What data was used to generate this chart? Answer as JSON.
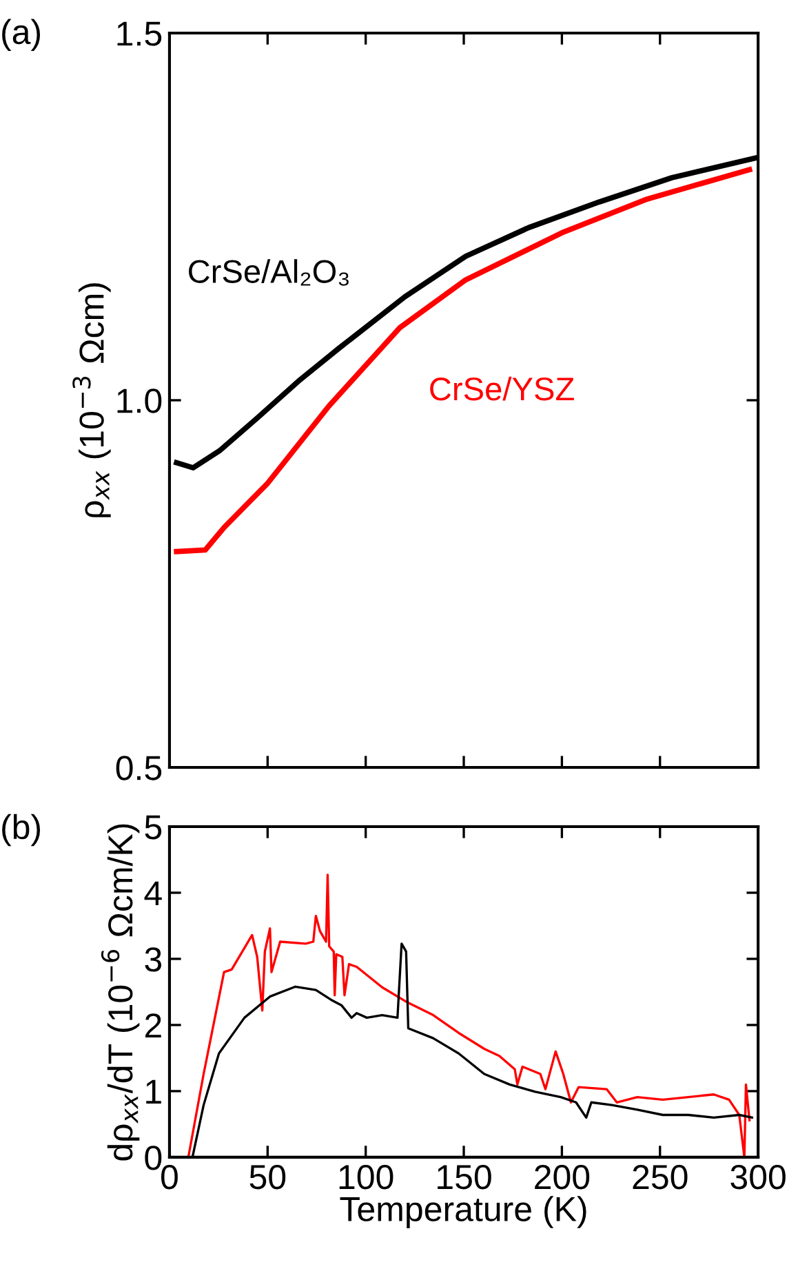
{
  "chart_data": [
    {
      "type": "line",
      "ylabel": "ρ$_{xx}$ (10$^{−3}$ Ωcm)",
      "annotations": [
        "(a)"
      ],
      "xlim": [
        0,
        300
      ],
      "xticks": [
        {
          "value": 0,
          "label": null
        },
        {
          "value": 50,
          "label": null
        },
        {
          "value": 100,
          "label": null
        },
        {
          "value": 150,
          "label": null
        },
        {
          "value": 200,
          "label": null
        },
        {
          "value": 250,
          "label": null
        },
        {
          "value": 300,
          "label": null
        }
      ],
      "ylim": [
        0.5,
        1.5
      ],
      "yticks": [
        0.5,
        {
          "value": 1.0,
          "label": "1.0"
        },
        1.5
      ],
      "tick_labels": "y",
      "grid": false,
      "legend": false,
      "marker": "none",
      "line_style": "solid",
      "series": [
        {
          "name": "CrSe/Al₂O₃",
          "color": "#000000",
          "x": [
            3.6,
            12.1,
            25.4,
            44.8,
            66.6,
            86,
            120,
            151,
            183,
            219,
            256,
            299
          ],
          "values": [
            0.915,
            0.908,
            0.931,
            0.976,
            1.028,
            1.07,
            1.141,
            1.196,
            1.235,
            1.27,
            1.303,
            1.33
          ]
        },
        {
          "name": "CrSe/YSZ",
          "color": "#ff0000",
          "x": [
            3.6,
            18.2,
            27.9,
            49.7,
            81.2,
            117.5,
            151,
            200,
            243.5,
            295.6
          ],
          "values": [
            0.794,
            0.796,
            0.827,
            0.886,
            0.992,
            1.099,
            1.164,
            1.228,
            1.274,
            1.314
          ]
        }
      ]
    },
    {
      "type": "line",
      "xlabel": "Temperature (K)",
      "ylabel": "dρ$_{xx}$/dT (10$^{−6}$ Ωcm/K)",
      "annotations": [
        "(b)"
      ],
      "xlim": [
        0,
        300
      ],
      "xticks": [
        0,
        50,
        100,
        150,
        200,
        250,
        300
      ],
      "ylim": [
        0,
        5
      ],
      "yticks": [
        0,
        1,
        2,
        3,
        4,
        5
      ],
      "grid": false,
      "legend": false,
      "marker": "none",
      "line_style": "solid",
      "series": [
        {
          "color": "#ff0000",
          "x": [
            9.6,
            17.4,
            27.8,
            31.7,
            42.1,
            44.7,
            47.3,
            48.6,
            51.2,
            52,
            56.4,
            69.4,
            73.3,
            74.6,
            76.7,
            79.8,
            80.6,
            81.4,
            83.7,
            84.2,
            85,
            88.1,
            89.2,
            91.5,
            95.4,
            108.4,
            121.4,
            134.4,
            147.4,
            160.4,
            168.2,
            176,
            177.3,
            179.9,
            189,
            191.6,
            196.8,
            200.7,
            204.6,
            208.5,
            222.8,
            228,
            238.4,
            251.4,
            264.4,
            277.4,
            285.2,
            290.4,
            293,
            293.8,
            295.6
          ],
          "values": [
            0,
            1.26,
            2.8,
            2.84,
            3.36,
            3.03,
            2.22,
            3.11,
            3.46,
            2.8,
            3.26,
            3.23,
            3.26,
            3.65,
            3.42,
            3.26,
            4.27,
            3.19,
            3.11,
            2.45,
            3.07,
            3.03,
            2.45,
            2.92,
            2.88,
            2.57,
            2.34,
            2.15,
            1.88,
            1.64,
            1.53,
            1.33,
            1.1,
            1.37,
            1.26,
            1.03,
            1.6,
            1.26,
            0.83,
            1.06,
            1.03,
            0.83,
            0.91,
            0.87,
            0.91,
            0.95,
            0.87,
            0.64,
            0,
            1.1,
            0.56
          ]
        },
        {
          "color": "#000000",
          "x": [
            11.7,
            17.4,
            25.2,
            38.2,
            51.2,
            64.2,
            74.6,
            82.4,
            87.6,
            92.8,
            95.4,
            100.6,
            108.4,
            116.2,
            118.3,
            120.6,
            121.7,
            134.4,
            147.4,
            160.4,
            173.4,
            186.4,
            199.4,
            207.2,
            212.4,
            215,
            225.4,
            238.4,
            251.4,
            264.4,
            277.4,
            290.4,
            296.9
          ],
          "values": [
            0,
            0.79,
            1.57,
            2.11,
            2.43,
            2.58,
            2.53,
            2.38,
            2.3,
            2.11,
            2.18,
            2.11,
            2.15,
            2.11,
            3.23,
            3.11,
            1.95,
            1.8,
            1.57,
            1.26,
            1.1,
            0.99,
            0.91,
            0.83,
            0.6,
            0.83,
            0.79,
            0.72,
            0.64,
            0.64,
            0.6,
            0.64,
            0.6
          ]
        }
      ]
    }
  ]
}
